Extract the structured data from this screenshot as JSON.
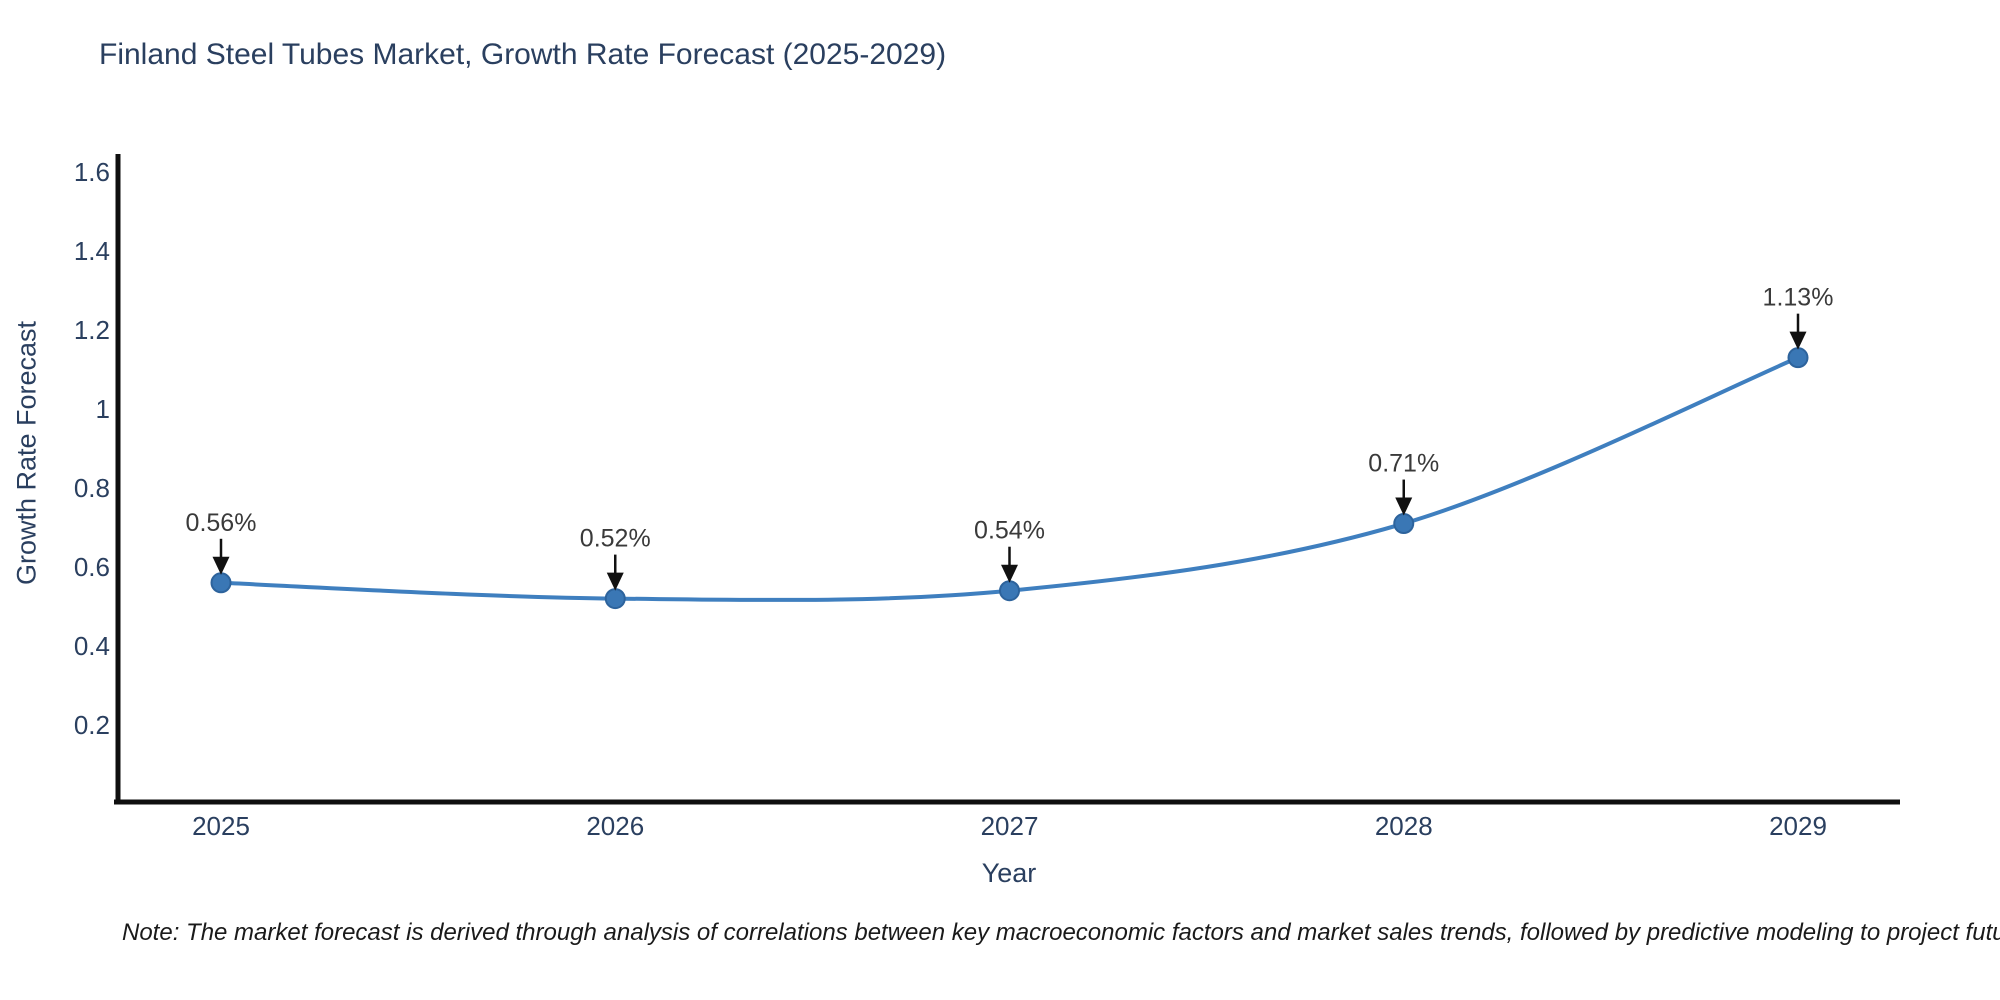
{
  "chart_data": {
    "type": "line",
    "title": "Finland Steel Tubes Market, Growth Rate Forecast (2025-2029)",
    "xlabel": "Year",
    "ylabel": "Growth Rate Forecast",
    "x": [
      2025,
      2026,
      2027,
      2028,
      2029
    ],
    "series": [
      {
        "name": "Growth Rate Forecast",
        "values": [
          0.56,
          0.52,
          0.54,
          0.71,
          1.13
        ],
        "point_labels": [
          "0.56%",
          "0.52%",
          "0.54%",
          "0.71%",
          "1.13%"
        ]
      }
    ],
    "xtick_labels": [
      "2025",
      "2026",
      "2027",
      "2028",
      "2029"
    ],
    "ytick_values": [
      0.2,
      0.4,
      0.6,
      0.8,
      1,
      1.2,
      1.4,
      1.6
    ],
    "ytick_labels": [
      "0.2",
      "0.4",
      "0.6",
      "0.8",
      "1",
      "1.2",
      "1.4",
      "1.6"
    ],
    "ylim": [
      0,
      1.65
    ],
    "grid": false,
    "legend_position": "none",
    "line_shape": "spline",
    "colors": {
      "line": "#3f7fbf",
      "marker_fill": "#3a77b5",
      "marker_stroke": "#2d639c",
      "axis": "#0f0f0f",
      "tick_text": "#2a3f5f",
      "title_text": "#2a3f5f",
      "annotation_text": "#3a3a3a",
      "annotation_arrow": "#111111"
    }
  },
  "note": {
    "text": "Note: The market forecast is derived through analysis of correlations between key macroeconomic factors and market sales trends, followed by predictive modeling to project future sales"
  }
}
